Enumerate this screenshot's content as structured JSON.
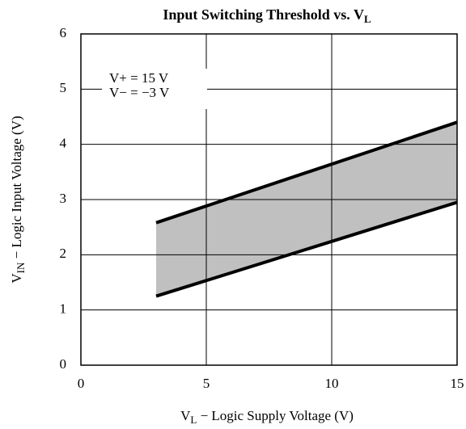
{
  "chart_data": {
    "type": "line",
    "title": [
      "Input Switching Threshold vs. V",
      "L"
    ],
    "x_label": [
      "V",
      "L",
      " − Logic Supply Voltage (V)"
    ],
    "y_label": [
      "V",
      "IN",
      " − Logic Input Voltage (V)"
    ],
    "annotations": [
      "V+ = 15 V",
      "V− = −3 V"
    ],
    "x": [
      3,
      15
    ],
    "series": [
      {
        "color": "#000000",
        "values": [
          2.58,
          4.4
        ]
      },
      {
        "color": "#000000",
        "values": [
          1.25,
          2.95
        ]
      }
    ],
    "fill_between": "#c0c0c0",
    "xlim": [
      0,
      15
    ],
    "xticks": [
      0,
      5,
      10,
      15
    ],
    "ylim": [
      0,
      6
    ],
    "yticks": [
      0,
      1,
      2,
      3,
      4,
      5,
      6
    ],
    "grid": true
  }
}
